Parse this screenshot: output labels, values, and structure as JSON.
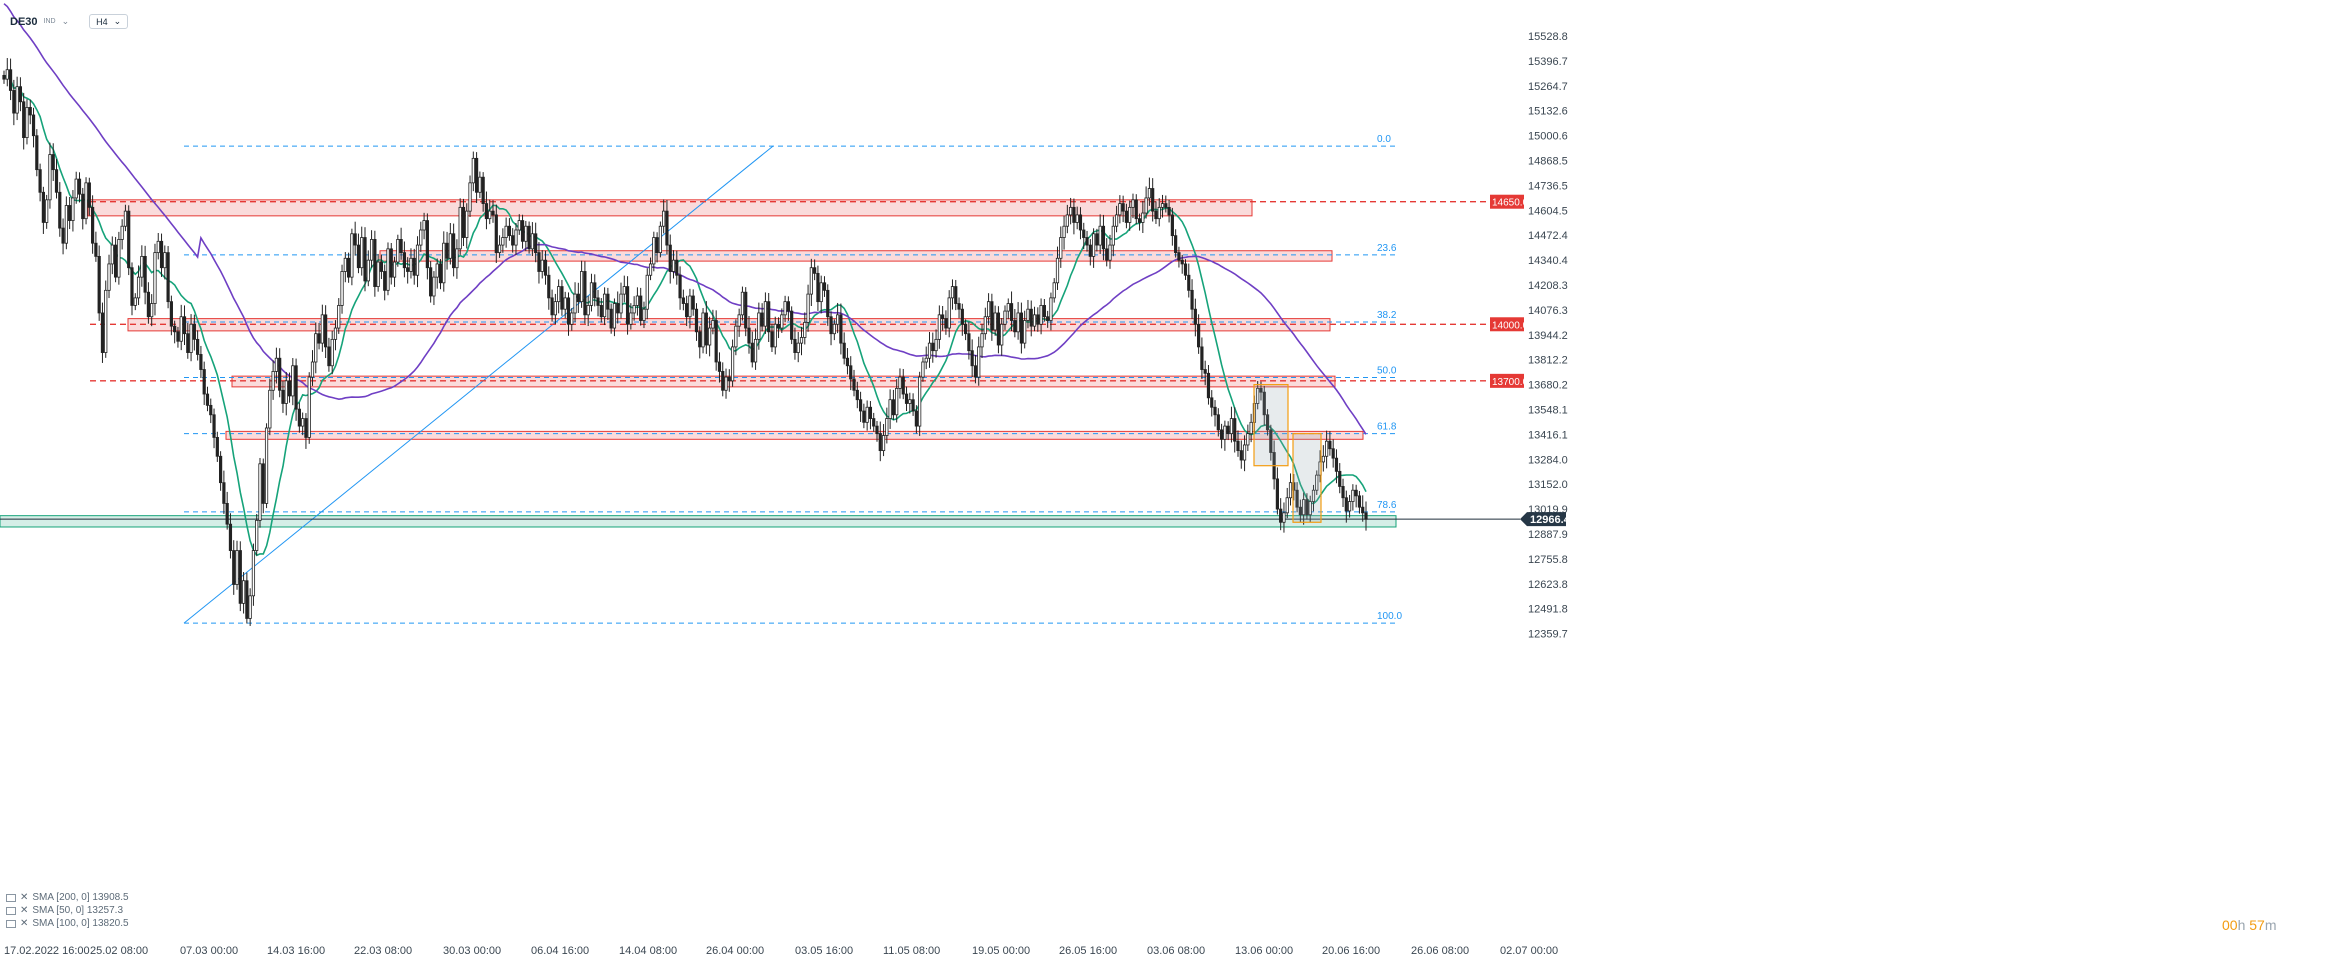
{
  "header": {
    "symbol": "DE30",
    "market": "IND",
    "timeframe": "H4"
  },
  "legend": [
    {
      "label": "SMA [200, 0] 13908.5",
      "color": "#6f3fc4"
    },
    {
      "label": "SMA [50, 0] 13257.3",
      "color": "#16a37a"
    },
    {
      "label": "SMA [100, 0] 13820.5",
      "color": "#6f3fc4"
    }
  ],
  "timer": {
    "hours": "00",
    "h": "h",
    "minutes": "57",
    "m": "m"
  },
  "chart_data": {
    "type": "candlestick",
    "y_ticks": [
      15528.8,
      15396.7,
      15264.7,
      15132.6,
      15000.6,
      14868.5,
      14736.5,
      14604.5,
      14472.4,
      14340.4,
      14208.3,
      14076.3,
      13944.2,
      13812.2,
      13680.2,
      13548.1,
      13416.1,
      13284.0,
      13152.0,
      13019.9,
      12887.9,
      12755.8,
      12623.8,
      12491.8,
      12359.7
    ],
    "ylim": [
      12330,
      15560
    ],
    "x_ticks": [
      "17.02.2022 16:00",
      "25.02 08:00",
      "07.03 00:00",
      "14.03 16:00",
      "22.03 08:00",
      "30.03 00:00",
      "06.04 16:00",
      "14.04 08:00",
      "26.04 00:00",
      "03.05 16:00",
      "11.05 08:00",
      "19.05 00:00",
      "26.05 16:00",
      "03.06 08:00",
      "13.06 00:00",
      "20.06 16:00",
      "26.06 08:00",
      "02.07 00:00"
    ],
    "current_price": {
      "label": "12966.4",
      "value": 12966.4
    },
    "price_levels": [
      {
        "label": "14650.0",
        "value": 14650.0,
        "color": "#e53935"
      },
      {
        "label": "14000.0",
        "value": 14000.0,
        "color": "#e53935"
      },
      {
        "label": "13700.0",
        "value": 13700.0,
        "color": "#e53935"
      }
    ],
    "fibonacci": [
      {
        "label": "0.0",
        "value": 14945
      },
      {
        "label": "23.6",
        "value": 14368
      },
      {
        "label": "38.2",
        "value": 14012
      },
      {
        "label": "50.0",
        "value": 13718
      },
      {
        "label": "61.8",
        "value": 13420
      },
      {
        "label": "78.6",
        "value": 13005
      },
      {
        "label": "100.0",
        "value": 12415
      }
    ],
    "zones": [
      {
        "name": "resistance-zone-14600",
        "from": 14575,
        "to": 14660,
        "color": "#e53935"
      },
      {
        "name": "resistance-zone-14340",
        "from": 14335,
        "to": 14390,
        "color": "#e53935"
      },
      {
        "name": "resistance-zone-14000",
        "from": 13965,
        "to": 14030,
        "color": "#e53935"
      },
      {
        "name": "resistance-zone-13700",
        "from": 13668,
        "to": 13725,
        "color": "#e53935"
      },
      {
        "name": "resistance-zone-13400",
        "from": 13390,
        "to": 13432,
        "color": "#e53935"
      },
      {
        "name": "support-zone-12960",
        "from": 12925,
        "to": 12985,
        "color": "#16a37a"
      }
    ],
    "trendline": {
      "from": 12415,
      "to": 14945
    },
    "pattern_boxes": [
      {
        "from": 13250,
        "to": 13680
      },
      {
        "from": 12950,
        "to": 13420
      }
    ],
    "candles_close": [
      15300,
      15350,
      15240,
      15120,
      15260,
      15180,
      14990,
      15150,
      15110,
      15000,
      14820,
      14700,
      14540,
      14660,
      14900,
      14820,
      14700,
      14510,
      14430,
      14630,
      14550,
      14670,
      14770,
      14690,
      14560,
      14750,
      14620,
      14430,
      14360,
      14060,
      13850,
      14180,
      14320,
      14420,
      14250,
      14450,
      14520,
      14600,
      14300,
      14100,
      14140,
      14250,
      14360,
      14170,
      14040,
      14110,
      14380,
      14440,
      14300,
      14380,
      14120,
      13990,
      13960,
      13910,
      14040,
      13950,
      13850,
      14000,
      13920,
      13840,
      13760,
      13630,
      13570,
      13520,
      13400,
      13300,
      13160,
      13050,
      12940,
      12800,
      12620,
      12800,
      12520,
      12640,
      12440,
      12560,
      12800,
      12960,
      13260,
      13050,
      13450,
      13650,
      13750,
      13820,
      13650,
      13580,
      13700,
      13620,
      13780,
      13550,
      13460,
      13500,
      13400,
      13720,
      13800,
      13950,
      13900,
      14050,
      13880,
      13780,
      13920,
      13980,
      14100,
      14280,
      14350,
      14250,
      14480,
      14420,
      14300,
      14460,
      14230,
      14340,
      14450,
      14200,
      14330,
      14280,
      14180,
      14400,
      14250,
      14330,
      14450,
      14380,
      14300,
      14280,
      14350,
      14260,
      14420,
      14500,
      14550,
      14300,
      14150,
      14250,
      14320,
      14220,
      14430,
      14350,
      14480,
      14300,
      14400,
      14620,
      14460,
      14600,
      14750,
      14880,
      14700,
      14780,
      14640,
      14560,
      14600,
      14580,
      14380,
      14420,
      14460,
      14520,
      14470,
      14420,
      14500,
      14550,
      14440,
      14520,
      14400,
      14480,
      14380,
      14280,
      14340,
      14260,
      14140,
      14050,
      14120,
      14200,
      14080,
      14140,
      14000,
      14060,
      14160,
      14120,
      14280,
      14050,
      14100,
      14220,
      14140,
      14100,
      14040,
      14160,
      14080,
      13980,
      14110,
      14060,
      14160,
      14200,
      14000,
      14060,
      14100,
      14150,
      14020,
      14080,
      14260,
      14320,
      14460,
      14380,
      14520,
      14600,
      14420,
      14280,
      14340,
      14260,
      14140,
      14110,
      14040,
      14150,
      14080,
      13960,
      13880,
      14060,
      13890,
      13980,
      14020,
      13800,
      13750,
      13650,
      13720,
      13700,
      13880,
      13990,
      14050,
      14170,
      13980,
      13900,
      13800,
      13920,
      14060,
      13990,
      14120,
      13960,
      13880,
      14000,
      13980,
      14050,
      14120,
      14070,
      13920,
      13850,
      13900,
      13930,
      14010,
      14160,
      14300,
      14270,
      14120,
      14220,
      14180,
      14040,
      13950,
      14000,
      14050,
      13900,
      13820,
      13780,
      13710,
      13650,
      13600,
      13540,
      13480,
      13560,
      13500,
      13460,
      13420,
      13330,
      13410,
      13500,
      13600,
      13520,
      13660,
      13720,
      13630,
      13580,
      13600,
      13540,
      13460,
      13720,
      13800,
      13820,
      13900,
      13860,
      13920,
      14050,
      14030,
      13980,
      14140,
      14200,
      14110,
      14080,
      14000,
      13950,
      13860,
      13780,
      13720,
      13880,
      13950,
      14040,
      14120,
      13970,
      14060,
      13890,
      14000,
      14070,
      14110,
      14020,
      13960,
      14060,
      13900,
      14020,
      14080,
      13990,
      14050,
      14000,
      14100,
      14040,
      14020,
      14140,
      14220,
      14350,
      14460,
      14520,
      14580,
      14620,
      14540,
      14580,
      14500,
      14460,
      14420,
      14360,
      14480,
      14420,
      14520,
      14400,
      14340,
      14420,
      14520,
      14580,
      14640,
      14600,
      14540,
      14620,
      14660,
      14560,
      14540,
      14590,
      14670,
      14720,
      14600,
      14560,
      14620,
      14640,
      14620,
      14580,
      14470,
      14380,
      14340,
      14320,
      14260,
      14180,
      14080,
      14000,
      13880,
      13760,
      13740
    ],
    "candles_tail": [
      13610,
      13560,
      13520,
      13440,
      13390,
      13460,
      13420,
      13500,
      13380,
      13330,
      13280,
      13360,
      13420,
      13480,
      13580,
      13660,
      13640,
      13520,
      13440,
      13320,
      13180,
      13020,
      12950,
      13000,
      13080,
      13160,
      13120,
      13030,
      12990,
      13070,
      12990,
      13060,
      13120,
      13200,
      13270,
      13300,
      13380,
      13340,
      13290,
      13220,
      13140,
      13080,
      13010,
      13060,
      13120,
      13090,
      13030,
      13000,
      12966
    ]
  }
}
